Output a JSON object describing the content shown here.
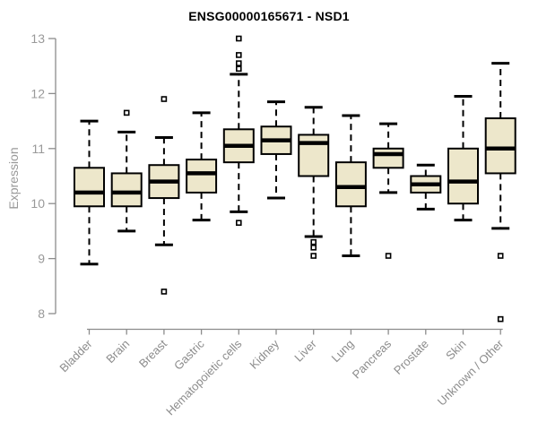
{
  "chart_data": {
    "type": "boxplot",
    "title": "ENSG00000165671 - NSD1",
    "ylabel": "Expression",
    "xlabel": "",
    "ylim": [
      8,
      13
    ],
    "yticks": [
      8,
      9,
      10,
      11,
      12,
      13
    ],
    "grid": false,
    "legend": "none",
    "categories": [
      "Bladder",
      "Brain",
      "Breast",
      "Gastric",
      "Hematopoietic cells",
      "Kidney",
      "Liver",
      "Lung",
      "Pancreas",
      "Prostate",
      "Skin",
      "Unknown / Other"
    ],
    "series": [
      {
        "category": "Bladder",
        "whisker_low": 8.9,
        "q1": 9.95,
        "median": 10.2,
        "q3": 10.65,
        "whisker_high": 11.5,
        "outliers": []
      },
      {
        "category": "Brain",
        "whisker_low": 9.5,
        "q1": 9.95,
        "median": 10.2,
        "q3": 10.55,
        "whisker_high": 11.3,
        "outliers": [
          11.65
        ]
      },
      {
        "category": "Breast",
        "whisker_low": 9.25,
        "q1": 10.1,
        "median": 10.4,
        "q3": 10.7,
        "whisker_high": 11.2,
        "outliers": [
          11.9,
          8.4
        ]
      },
      {
        "category": "Gastric",
        "whisker_low": 9.7,
        "q1": 10.2,
        "median": 10.55,
        "q3": 10.8,
        "whisker_high": 11.65,
        "outliers": []
      },
      {
        "category": "Hematopoietic cells",
        "whisker_low": 9.85,
        "q1": 10.75,
        "median": 11.05,
        "q3": 11.35,
        "whisker_high": 12.35,
        "outliers": [
          13.0,
          12.7,
          12.55,
          12.45,
          9.65
        ]
      },
      {
        "category": "Kidney",
        "whisker_low": 10.1,
        "q1": 10.9,
        "median": 11.15,
        "q3": 11.4,
        "whisker_high": 11.85,
        "outliers": []
      },
      {
        "category": "Liver",
        "whisker_low": 9.4,
        "q1": 10.5,
        "median": 11.1,
        "q3": 11.25,
        "whisker_high": 11.75,
        "outliers": [
          9.3,
          9.2,
          9.05
        ]
      },
      {
        "category": "Lung",
        "whisker_low": 9.05,
        "q1": 9.95,
        "median": 10.3,
        "q3": 10.75,
        "whisker_high": 11.6,
        "outliers": []
      },
      {
        "category": "Pancreas",
        "whisker_low": 10.2,
        "q1": 10.65,
        "median": 10.9,
        "q3": 11.0,
        "whisker_high": 11.45,
        "outliers": [
          9.05
        ]
      },
      {
        "category": "Prostate",
        "whisker_low": 9.9,
        "q1": 10.2,
        "median": 10.35,
        "q3": 10.5,
        "whisker_high": 10.7,
        "outliers": []
      },
      {
        "category": "Skin",
        "whisker_low": 9.7,
        "q1": 10.0,
        "median": 10.4,
        "q3": 11.0,
        "whisker_high": 11.95,
        "outliers": []
      },
      {
        "category": "Unknown / Other",
        "whisker_low": 9.55,
        "q1": 10.55,
        "median": 11.0,
        "q3": 11.55,
        "whisker_high": 12.55,
        "outliers": [
          9.05,
          7.9
        ]
      }
    ]
  },
  "style": {
    "box_fill": "#EDE7CB",
    "box_stroke": "#000000",
    "median_color": "#000000",
    "whisker_color": "#000000",
    "outlier_stroke": "#000000",
    "outlier_fill": "#FFFFFF",
    "axis_line_color": "#8C8C8C",
    "tick_label_color": "#999999",
    "category_label_color": "#8C8C8C",
    "title_color": "#000000",
    "background": "#FFFFFF"
  }
}
